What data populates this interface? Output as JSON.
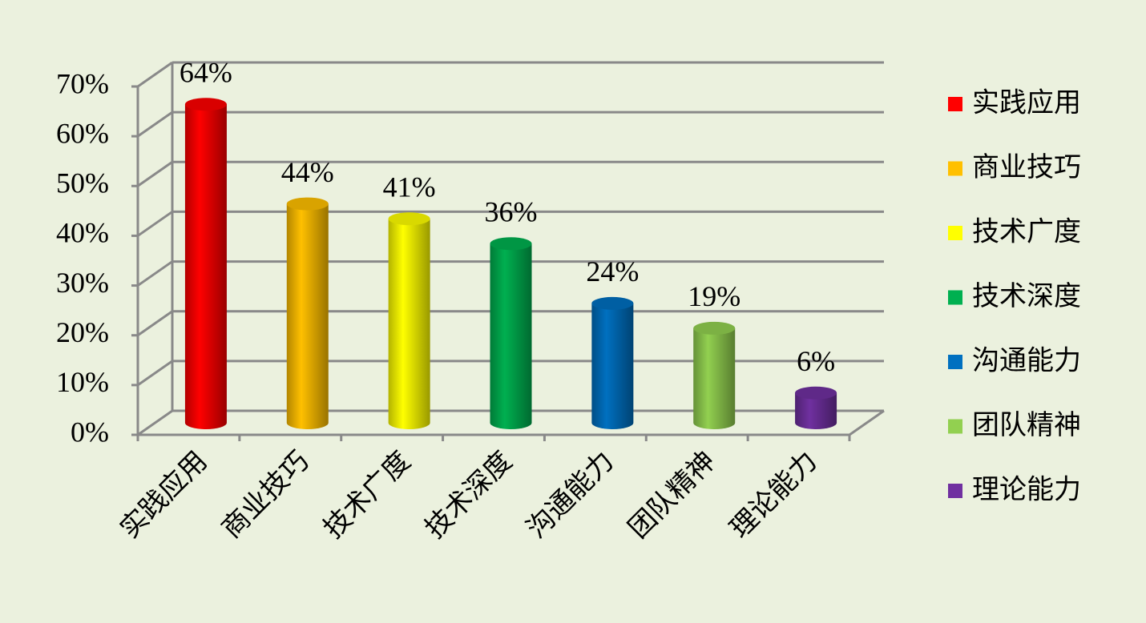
{
  "chart_data": {
    "type": "bar",
    "categories": [
      "实践应用",
      "商业技巧",
      "技术广度",
      "技术深度",
      "沟通能力",
      "团队精神",
      "理论能力"
    ],
    "values": [
      64,
      44,
      41,
      36,
      24,
      19,
      6
    ],
    "value_labels": [
      "64%",
      "44%",
      "41%",
      "36%",
      "24%",
      "19%",
      "6%"
    ],
    "colors": [
      "#ff0000",
      "#ffc000",
      "#ffff00",
      "#00b050",
      "#0070c0",
      "#92d050",
      "#7030a0"
    ],
    "ylim": [
      0,
      70
    ],
    "yticks": [
      {
        "value": 0,
        "label": "0%"
      },
      {
        "value": 10,
        "label": "10%"
      },
      {
        "value": 20,
        "label": "20%"
      },
      {
        "value": 30,
        "label": "30%"
      },
      {
        "value": 40,
        "label": "40%"
      },
      {
        "value": 50,
        "label": "50%"
      },
      {
        "value": 60,
        "label": "60%"
      },
      {
        "value": 70,
        "label": "70%"
      }
    ],
    "grid": true,
    "legend": "right"
  }
}
